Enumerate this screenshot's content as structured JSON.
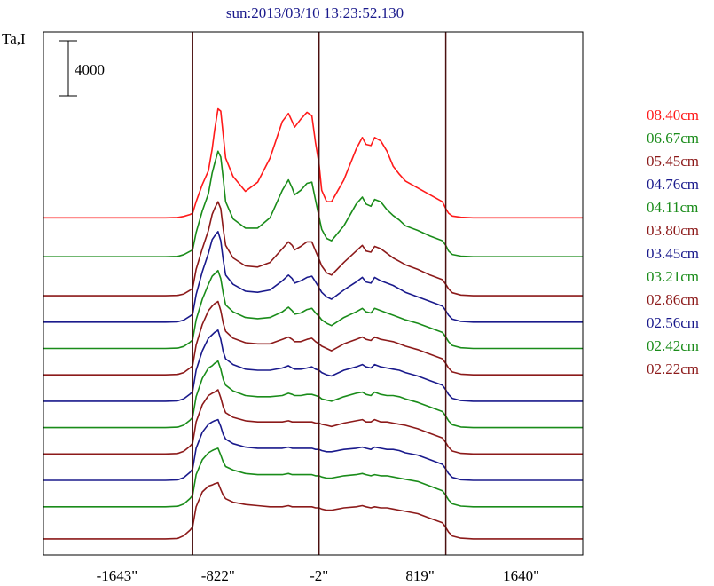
{
  "chart_data": {
    "type": "line",
    "title": "sun:2013/03/10 13:23:52.130",
    "ylabel": "Ta,I",
    "xlabel": "",
    "scale_bar_label": "4000",
    "scale_bar_value": 4000,
    "xlim": [
      -2240,
      2140
    ],
    "ylim": [
      -1400,
      44200
    ],
    "x_ticks": [
      {
        "value": -1643,
        "label": "-1643\""
      },
      {
        "value": -822,
        "label": "-822\""
      },
      {
        "value": -2,
        "label": "-2\""
      },
      {
        "value": 819,
        "label": "819\""
      },
      {
        "value": 1640,
        "label": "1640\""
      }
    ],
    "vertical_lines": [
      -1028,
      -2,
      1028
    ],
    "colors": {
      "red": "#ff1a1a",
      "green": "#1a8c1a",
      "darkred": "#8c1a1a",
      "navy": "#1a1a8c",
      "axis": "#000000",
      "title": "#1a1a8c"
    },
    "x": [
      -2240,
      -1900,
      -1700,
      -1550,
      -1400,
      -1250,
      -1150,
      -1100,
      -1050,
      -1028,
      -1000,
      -950,
      -900,
      -870,
      -850,
      -822,
      -800,
      -780,
      -760,
      -700,
      -600,
      -500,
      -400,
      -300,
      -250,
      -220,
      -200,
      -150,
      -100,
      -60,
      -30,
      -2,
      20,
      60,
      100,
      200,
      300,
      350,
      380,
      420,
      450,
      500,
      550,
      600,
      650,
      700,
      800,
      900,
      1000,
      1028,
      1050,
      1080,
      1150,
      1250,
      1400,
      1600,
      1900,
      2140
    ],
    "series": [
      {
        "name": "08.40cm",
        "color": "#ff1a1a",
        "baseline": 28000,
        "values": [
          0,
          0,
          0,
          0,
          0,
          0,
          30,
          120,
          280,
          400,
          1400,
          2900,
          4100,
          6000,
          7600,
          9500,
          9300,
          7200,
          5200,
          3600,
          2300,
          3100,
          5200,
          8400,
          9100,
          8400,
          7900,
          8600,
          9200,
          8900,
          6500,
          4700,
          2400,
          1400,
          1400,
          3300,
          6000,
          7000,
          6400,
          6300,
          7000,
          6700,
          5800,
          4500,
          3800,
          3200,
          2600,
          2000,
          1400,
          800,
          400,
          150,
          40,
          0,
          0,
          0,
          0,
          0
        ]
      },
      {
        "name": "06.67cm",
        "color": "#1a8c1a",
        "baseline": 24600,
        "values": [
          0,
          0,
          0,
          0,
          0,
          0,
          30,
          180,
          470,
          600,
          2100,
          4000,
          5500,
          7300,
          8100,
          9200,
          8700,
          6800,
          4800,
          3300,
          2500,
          2500,
          3400,
          5800,
          6700,
          6000,
          5400,
          5800,
          6400,
          6500,
          4900,
          3500,
          2400,
          1600,
          1400,
          2700,
          4600,
          5200,
          4600,
          4400,
          5000,
          4800,
          4100,
          3600,
          3200,
          2700,
          2300,
          1800,
          1400,
          1000,
          500,
          200,
          50,
          0,
          0,
          0,
          0,
          0
        ]
      },
      {
        "name": "05.45cm",
        "color": "#8c1a1a",
        "baseline": 21200,
        "values": [
          0,
          0,
          0,
          0,
          0,
          0,
          30,
          150,
          480,
          650,
          2300,
          4100,
          5700,
          7100,
          7600,
          8200,
          7600,
          5800,
          4400,
          3300,
          2600,
          2500,
          2900,
          4100,
          4700,
          4400,
          4000,
          4300,
          4700,
          4700,
          3900,
          3200,
          2600,
          2000,
          1800,
          2900,
          3900,
          4400,
          3900,
          3800,
          4300,
          4100,
          3700,
          3300,
          3000,
          2700,
          2300,
          1800,
          1400,
          1000,
          600,
          260,
          60,
          0,
          0,
          0,
          0,
          0
        ]
      },
      {
        "name": "04.76cm",
        "color": "#1a1a8c",
        "baseline": 18900,
        "values": [
          0,
          0,
          0,
          0,
          0,
          0,
          30,
          180,
          520,
          700,
          2400,
          4400,
          6000,
          7200,
          7500,
          7900,
          7100,
          5400,
          4100,
          3300,
          2700,
          2600,
          2800,
          3600,
          4100,
          3800,
          3400,
          3600,
          3900,
          4000,
          3500,
          3000,
          2600,
          2200,
          2000,
          2800,
          3500,
          3900,
          3500,
          3400,
          3900,
          3600,
          3400,
          3200,
          2900,
          2600,
          2200,
          1800,
          1400,
          1000,
          600,
          260,
          60,
          0,
          0,
          0,
          0,
          0
        ]
      },
      {
        "name": "04.11cm",
        "color": "#1a8c1a",
        "baseline": 16600,
        "values": [
          0,
          0,
          0,
          0,
          0,
          0,
          30,
          180,
          540,
          750,
          2500,
          4300,
          5600,
          6300,
          6500,
          6800,
          6100,
          4800,
          3800,
          3200,
          2700,
          2600,
          2700,
          3200,
          3600,
          3300,
          3000,
          3100,
          3400,
          3500,
          3100,
          2800,
          2500,
          2200,
          2000,
          2700,
          3200,
          3500,
          3200,
          3100,
          3500,
          3300,
          3100,
          2900,
          2700,
          2500,
          2200,
          1800,
          1400,
          1000,
          600,
          260,
          60,
          0,
          0,
          0,
          0,
          0
        ]
      },
      {
        "name": "03.80cm",
        "color": "#8c1a1a",
        "baseline": 14300,
        "values": [
          0,
          0,
          0,
          0,
          0,
          0,
          40,
          200,
          600,
          800,
          2600,
          4400,
          5600,
          6000,
          6200,
          6400,
          5600,
          4500,
          3800,
          3200,
          2800,
          2700,
          2700,
          3100,
          3300,
          3100,
          2900,
          2900,
          3100,
          3200,
          2900,
          2700,
          2500,
          2300,
          2100,
          2700,
          3100,
          3300,
          3100,
          3000,
          3300,
          3100,
          3000,
          2900,
          2700,
          2500,
          2200,
          1800,
          1400,
          1000,
          600,
          260,
          60,
          0,
          0,
          0,
          0,
          0
        ]
      },
      {
        "name": "03.45cm",
        "color": "#1a1a8c",
        "baseline": 12000,
        "values": [
          0,
          0,
          0,
          0,
          0,
          0,
          40,
          220,
          620,
          850,
          2700,
          4400,
          5500,
          5800,
          6000,
          6200,
          5400,
          4300,
          3700,
          3200,
          2800,
          2700,
          2700,
          2900,
          3100,
          2900,
          2800,
          2800,
          2900,
          3000,
          2800,
          2700,
          2500,
          2300,
          2200,
          2700,
          3000,
          3200,
          3000,
          2900,
          3200,
          3000,
          2900,
          2800,
          2700,
          2500,
          2200,
          1800,
          1400,
          1000,
          600,
          260,
          60,
          0,
          0,
          0,
          0,
          0
        ]
      },
      {
        "name": "03.21cm",
        "color": "#1a8c1a",
        "baseline": 9700,
        "values": [
          0,
          0,
          0,
          0,
          0,
          0,
          40,
          220,
          650,
          900,
          2700,
          4300,
          5200,
          5400,
          5600,
          5800,
          5100,
          4200,
          3700,
          3200,
          2800,
          2700,
          2700,
          2800,
          3000,
          2900,
          2800,
          2800,
          2900,
          2900,
          2800,
          2700,
          2500,
          2400,
          2300,
          2700,
          3000,
          3100,
          2900,
          2800,
          3100,
          2900,
          2800,
          2800,
          2700,
          2500,
          2200,
          1800,
          1400,
          1000,
          600,
          260,
          60,
          0,
          0,
          0,
          0,
          0
        ]
      },
      {
        "name": "02.86cm",
        "color": "#8c1a1a",
        "baseline": 7400,
        "values": [
          0,
          0,
          0,
          0,
          0,
          0,
          40,
          240,
          680,
          950,
          2800,
          4300,
          5100,
          5300,
          5400,
          5600,
          4900,
          4100,
          3600,
          3200,
          2900,
          2800,
          2800,
          2800,
          2900,
          2800,
          2800,
          2800,
          2800,
          2800,
          2700,
          2700,
          2600,
          2500,
          2400,
          2700,
          2900,
          3000,
          2800,
          2800,
          3000,
          2800,
          2800,
          2700,
          2600,
          2500,
          2200,
          1800,
          1400,
          1000,
          600,
          260,
          60,
          0,
          0,
          0,
          0,
          0
        ]
      },
      {
        "name": "02.56cm",
        "color": "#1a1a8c",
        "baseline": 5100,
        "values": [
          0,
          0,
          0,
          0,
          0,
          0,
          40,
          240,
          700,
          1000,
          2800,
          4200,
          4900,
          5100,
          5200,
          5300,
          4700,
          4000,
          3600,
          3200,
          2900,
          2800,
          2800,
          2800,
          2900,
          2800,
          2800,
          2800,
          2800,
          2800,
          2700,
          2700,
          2600,
          2500,
          2500,
          2700,
          2800,
          2900,
          2800,
          2700,
          2900,
          2800,
          2700,
          2700,
          2600,
          2400,
          2200,
          1800,
          1400,
          1000,
          600,
          260,
          60,
          0,
          0,
          0,
          0,
          0
        ]
      },
      {
        "name": "02.42cm",
        "color": "#1a8c1a",
        "baseline": 2800,
        "values": [
          0,
          0,
          0,
          0,
          0,
          0,
          40,
          240,
          720,
          1000,
          2800,
          4100,
          4700,
          4900,
          5000,
          5100,
          4500,
          3900,
          3500,
          3200,
          2900,
          2800,
          2800,
          2800,
          2900,
          2800,
          2800,
          2800,
          2800,
          2800,
          2700,
          2700,
          2600,
          2500,
          2500,
          2700,
          2800,
          2900,
          2800,
          2700,
          2800,
          2700,
          2700,
          2600,
          2500,
          2400,
          2200,
          1800,
          1400,
          1000,
          600,
          260,
          60,
          0,
          0,
          0,
          0,
          0
        ]
      },
      {
        "name": "02.22cm",
        "color": "#8c1a1a",
        "baseline": 0,
        "values": [
          0,
          0,
          0,
          0,
          0,
          0,
          40,
          280,
          760,
          1050,
          2800,
          4100,
          4600,
          4700,
          4800,
          4900,
          4300,
          3800,
          3500,
          3200,
          3000,
          2900,
          2800,
          2800,
          2900,
          2800,
          2800,
          2800,
          2800,
          2800,
          2700,
          2700,
          2600,
          2500,
          2500,
          2700,
          2800,
          2900,
          2800,
          2700,
          2800,
          2700,
          2700,
          2600,
          2500,
          2400,
          2200,
          1800,
          1400,
          1000,
          600,
          260,
          60,
          0,
          0,
          0,
          0,
          0
        ]
      }
    ]
  }
}
